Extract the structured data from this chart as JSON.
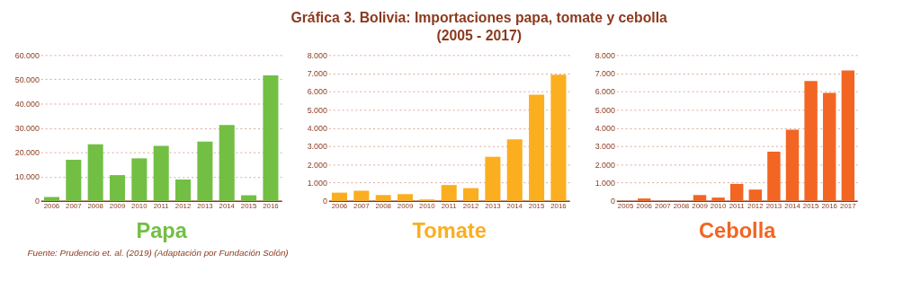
{
  "chart_data": [
    {
      "type": "other",
      "title": "Gráfica 3. Bolivia: Importaciones papa, tomate y cebolla",
      "subtitle": "(2005 - 2017)"
    },
    {
      "type": "bar",
      "annotations": [
        "Fuente: Prudencio et. al. (2019) (Adaptación por Fundación Solón)"
      ],
      "xlabel": "Papa",
      "categories": [
        "2006",
        "2007",
        "2008",
        "2009",
        "2010",
        "2011",
        "2012",
        "2013",
        "2014",
        "2015",
        "2016"
      ],
      "values": [
        1600,
        16900,
        23300,
        10600,
        17500,
        22600,
        8800,
        24400,
        31200,
        2300,
        51600
      ],
      "color": "#72bf44",
      "ylim": [
        0,
        60000
      ],
      "yticks": [
        0,
        {
          "value": 10000,
          "label": "10.000"
        },
        {
          "value": 20000,
          "label": "20.000"
        },
        {
          "value": 30000,
          "label": "30.000"
        },
        {
          "value": 40000,
          "label": "40.000"
        },
        {
          "value": 50000,
          "label": "50.000"
        },
        {
          "value": 60000,
          "label": "60.000"
        }
      ],
      "grid": "y"
    },
    {
      "type": "bar",
      "xlabel": "Tomate",
      "categories": [
        "2006",
        "2007",
        "2008",
        "2009",
        "2010",
        "2011",
        "2012",
        "2013",
        "2014",
        "2015",
        "2016"
      ],
      "values": [
        450,
        550,
        320,
        370,
        80,
        870,
        700,
        2420,
        3380,
        5830,
        6920
      ],
      "color": "#fbae1f",
      "ylim": [
        0,
        8000
      ],
      "yticks": [
        0,
        {
          "value": 1000,
          "label": "1.000"
        },
        {
          "value": 2000,
          "label": "2.000"
        },
        {
          "value": 3000,
          "label": "3.000"
        },
        {
          "value": 4000,
          "label": "4.000"
        },
        {
          "value": 5000,
          "label": "5.000"
        },
        {
          "value": 6000,
          "label": "6.000"
        },
        {
          "value": 7000,
          "label": "7.000"
        },
        {
          "value": 8000,
          "label": "8.000"
        }
      ],
      "grid": "y"
    },
    {
      "type": "bar",
      "xlabel": "Cebolla",
      "categories": [
        "2005",
        "2006",
        "2007",
        "2008",
        "2009",
        "2010",
        "2011",
        "2012",
        "2013",
        "2014",
        "2015",
        "2016",
        "2017"
      ],
      "values": [
        0,
        130,
        0,
        0,
        320,
        180,
        930,
        620,
        2700,
        3900,
        6570,
        5920,
        7160
      ],
      "color": "#f26522",
      "ylim": [
        0,
        8000
      ],
      "yticks": [
        0,
        {
          "value": 1000,
          "label": "1.000"
        },
        {
          "value": 2000,
          "label": "2.000"
        },
        {
          "value": 3000,
          "label": "3.000"
        },
        {
          "value": 4000,
          "label": "4.000"
        },
        {
          "value": 5000,
          "label": "5.000"
        },
        {
          "value": 6000,
          "label": "6.000"
        },
        {
          "value": 7000,
          "label": "7.000"
        },
        {
          "value": 8000,
          "label": "8.000"
        }
      ],
      "grid": "y"
    }
  ]
}
